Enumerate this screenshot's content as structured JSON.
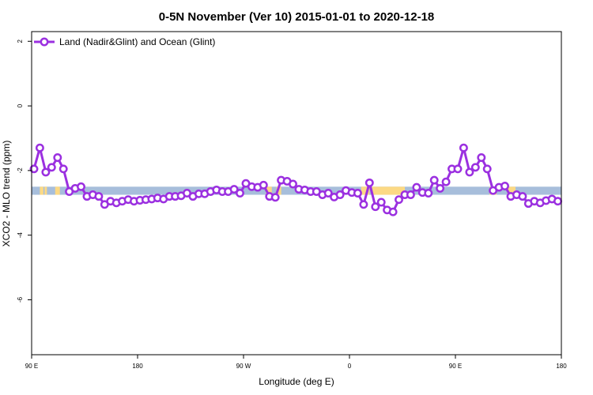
{
  "chart_data": {
    "type": "line",
    "title": "0-5N November (Ver 10)   2015-01-01 to 2020-12-18",
    "xlabel": "Longitude (deg E)",
    "ylabel": "XCO2 - MLO trend (ppm)",
    "xlim": [
      90,
      540
    ],
    "ylim": [
      -7.7,
      2.3
    ],
    "x_ticks": [
      {
        "value": 90,
        "label": "90 E"
      },
      {
        "value": 180,
        "label": "180"
      },
      {
        "value": 270,
        "label": "90 W"
      },
      {
        "value": 360,
        "label": "0"
      },
      {
        "value": 450,
        "label": "90 E"
      },
      {
        "value": 540,
        "label": "180"
      }
    ],
    "y_ticks": [
      {
        "value": 2,
        "label": "2"
      },
      {
        "value": 0,
        "label": "0"
      },
      {
        "value": -2,
        "label": "-2"
      },
      {
        "value": -4,
        "label": "-4"
      },
      {
        "value": -6,
        "label": "-6"
      }
    ],
    "grid": false,
    "legend": {
      "position": "top-left"
    },
    "band": {
      "y_range": [
        -2.75,
        -2.5
      ],
      "base_color": "#a7bedb",
      "highlight_color": "#fcd984",
      "highlights": [
        [
          97,
          100
        ],
        [
          101,
          103
        ],
        [
          110,
          114
        ],
        [
          289,
          294
        ],
        [
          298,
          302
        ],
        [
          370,
          377
        ],
        [
          379,
          407
        ],
        [
          479,
          481
        ],
        [
          483,
          485
        ],
        [
          494,
          501
        ]
      ]
    },
    "series": [
      {
        "name": "Land (Nadir&Glint) and Ocean (Glint)",
        "color": "#9b30e0",
        "x": [
          92,
          97,
          102,
          107,
          112,
          117,
          122,
          127,
          132,
          137,
          142,
          147,
          152,
          157,
          162,
          167,
          172,
          177,
          182,
          187,
          192,
          197,
          202,
          207,
          212,
          217,
          222,
          227,
          232,
          237,
          242,
          247,
          252,
          257,
          262,
          267,
          272,
          277,
          282,
          287,
          292,
          297,
          302,
          307,
          312,
          317,
          322,
          327,
          332,
          337,
          342,
          347,
          352,
          357,
          362,
          367,
          372,
          377,
          382,
          387,
          392,
          397,
          402,
          407,
          412,
          417,
          422,
          427,
          432,
          437,
          442,
          447,
          452,
          457,
          462,
          467,
          472,
          477,
          482,
          487,
          492,
          497,
          502,
          507,
          512,
          517,
          522,
          527,
          532,
          537
        ],
        "y": [
          -1.95,
          -1.3,
          -2.05,
          -1.9,
          -1.6,
          -1.95,
          -2.65,
          -2.55,
          -2.5,
          -2.8,
          -2.75,
          -2.8,
          -3.05,
          -2.95,
          -3.0,
          -2.95,
          -2.9,
          -2.95,
          -2.92,
          -2.9,
          -2.88,
          -2.85,
          -2.88,
          -2.8,
          -2.8,
          -2.78,
          -2.7,
          -2.8,
          -2.72,
          -2.72,
          -2.65,
          -2.6,
          -2.65,
          -2.65,
          -2.58,
          -2.7,
          -2.4,
          -2.5,
          -2.52,
          -2.45,
          -2.8,
          -2.83,
          -2.3,
          -2.33,
          -2.42,
          -2.58,
          -2.6,
          -2.65,
          -2.65,
          -2.75,
          -2.7,
          -2.82,
          -2.75,
          -2.62,
          -2.68,
          -2.7,
          -3.05,
          -2.38,
          -3.12,
          -2.98,
          -3.22,
          -3.28,
          -2.9,
          -2.75,
          -2.75,
          -2.52,
          -2.68,
          -2.7,
          -2.3,
          -2.55,
          -2.35,
          -1.95,
          -1.95,
          -1.3,
          -2.05,
          -1.9,
          -1.6,
          -1.95,
          -2.62,
          -2.52,
          -2.48,
          -2.8,
          -2.75,
          -2.8,
          -3.02,
          -2.95,
          -3.0,
          -2.93,
          -2.88,
          -2.95
        ]
      }
    ]
  }
}
